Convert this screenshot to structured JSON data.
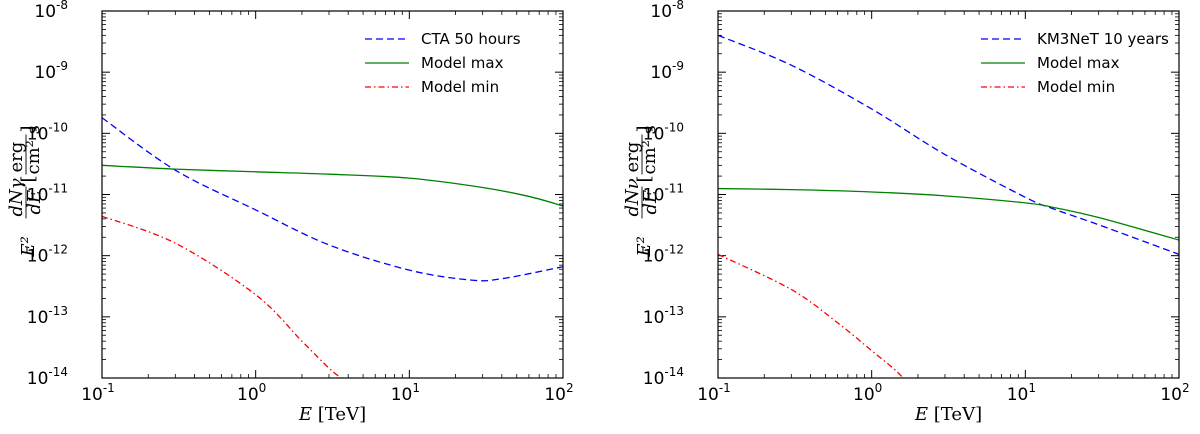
{
  "chart_data": [
    {
      "type": "line",
      "id": "gamma",
      "xscale": "log",
      "yscale": "log",
      "xlim": [
        0.1,
        100
      ],
      "ylim": [
        1e-14,
        1e-08
      ],
      "xlabel": {
        "var": "E",
        "unit": "[TeV]"
      },
      "ylabel": {
        "prefix": "E²",
        "num": "dNγ",
        "den": "dE",
        "unit_num": "erg",
        "unit_den": "cm² s"
      },
      "x_ticks": [
        {
          "base": "10",
          "exp": "-1"
        },
        {
          "base": "10",
          "exp": "0"
        },
        {
          "base": "10",
          "exp": "1"
        },
        {
          "base": "10",
          "exp": "2"
        }
      ],
      "y_ticks": [
        {
          "base": "10",
          "exp": "-14"
        },
        {
          "base": "10",
          "exp": "-13"
        },
        {
          "base": "10",
          "exp": "-12"
        },
        {
          "base": "10",
          "exp": "-11"
        },
        {
          "base": "10",
          "exp": "-10"
        },
        {
          "base": "10",
          "exp": "-9"
        },
        {
          "base": "10",
          "exp": "-8"
        }
      ],
      "legend_position": "top-right",
      "series": [
        {
          "name": "CTA 50 hours",
          "style": "dashed",
          "color": "#0000ff",
          "x": [
            0.1,
            0.3,
            1,
            3,
            10,
            25,
            40,
            100
          ],
          "y": [
            1.8e-10,
            2.5e-11,
            5.6e-12,
            1.5e-12,
            5.8e-13,
            4e-13,
            4.2e-13,
            6.6e-13
          ]
        },
        {
          "name": "Model max",
          "style": "solid",
          "color": "#008000",
          "x": [
            0.1,
            0.3,
            1,
            3,
            10,
            30,
            60,
            100
          ],
          "y": [
            3e-11,
            2.6e-11,
            2.35e-11,
            2.15e-11,
            1.85e-11,
            1.3e-11,
            9.3e-12,
            6.5e-12
          ]
        },
        {
          "name": "Model min",
          "style": "dashdot",
          "color": "#ff0000",
          "x": [
            0.1,
            0.3,
            1,
            2,
            3,
            3.6
          ],
          "y": [
            4.4e-12,
            1.6e-12,
            2.3e-13,
            4e-14,
            1.45e-14,
            1e-14
          ]
        }
      ]
    },
    {
      "type": "line",
      "id": "neutrino",
      "xscale": "log",
      "yscale": "log",
      "xlim": [
        0.1,
        100
      ],
      "ylim": [
        1e-14,
        1e-08
      ],
      "xlabel": {
        "var": "E",
        "unit": "[TeV]"
      },
      "ylabel": {
        "prefix": "E²",
        "num": "dNν",
        "den": "dE",
        "unit_num": "erg",
        "unit_den": "cm² s"
      },
      "x_ticks": [
        {
          "base": "10",
          "exp": "-1"
        },
        {
          "base": "10",
          "exp": "0"
        },
        {
          "base": "10",
          "exp": "1"
        },
        {
          "base": "10",
          "exp": "2"
        }
      ],
      "y_ticks": [
        {
          "base": "10",
          "exp": "-14"
        },
        {
          "base": "10",
          "exp": "-13"
        },
        {
          "base": "10",
          "exp": "-12"
        },
        {
          "base": "10",
          "exp": "-11"
        },
        {
          "base": "10",
          "exp": "-10"
        },
        {
          "base": "10",
          "exp": "-9"
        },
        {
          "base": "10",
          "exp": "-8"
        }
      ],
      "legend_position": "top-right",
      "series": [
        {
          "name": "KM3NeT 10 years",
          "style": "dashed",
          "color": "#0000ff",
          "x": [
            0.1,
            0.3,
            1,
            3,
            10,
            15,
            30,
            100
          ],
          "y": [
            4e-09,
            1.3e-09,
            2.5e-10,
            4.5e-11,
            9e-12,
            5.9e-12,
            3.2e-12,
            1.05e-12
          ]
        },
        {
          "name": "Model max",
          "style": "solid",
          "color": "#008000",
          "x": [
            0.1,
            0.3,
            1,
            3,
            10,
            15,
            30,
            100
          ],
          "y": [
            1.25e-11,
            1.2e-11,
            1.1e-11,
            9.5e-12,
            7.3e-12,
            6.2e-12,
            4.2e-12,
            1.8e-12
          ]
        },
        {
          "name": "Model min",
          "style": "dashdot",
          "color": "#ff0000",
          "x": [
            0.1,
            0.3,
            0.6,
            1,
            1.4,
            1.6
          ],
          "y": [
            1.05e-12,
            2.8e-13,
            8e-14,
            2.8e-14,
            1.4e-14,
            1e-14
          ]
        }
      ]
    }
  ]
}
